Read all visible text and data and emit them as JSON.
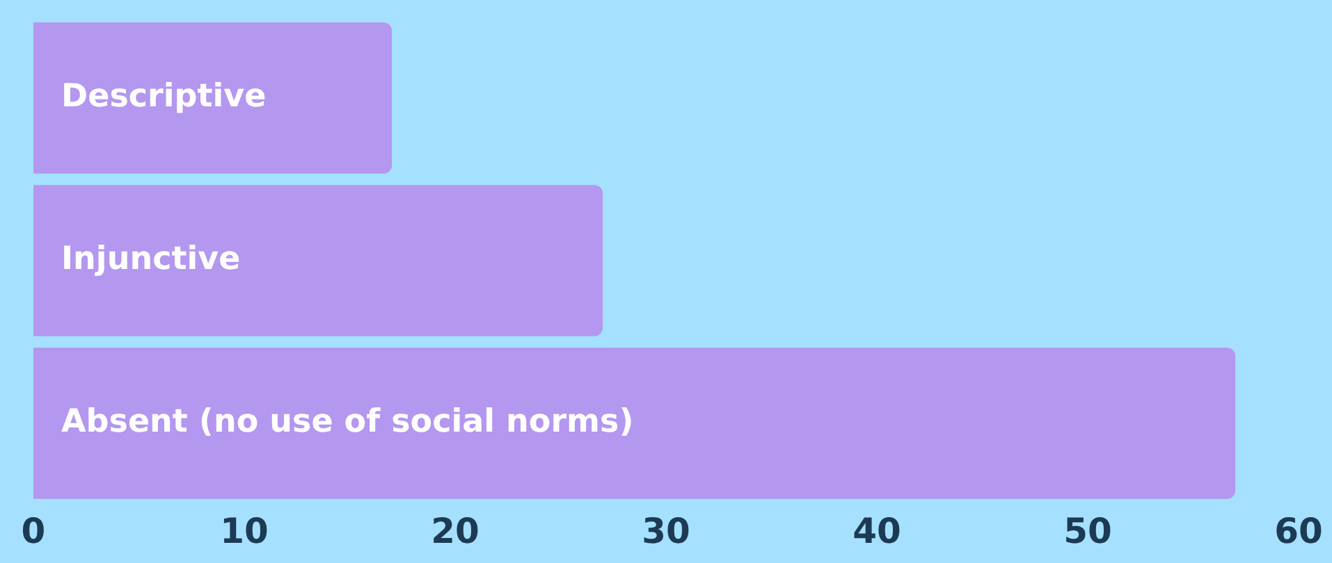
{
  "chart_data": {
    "type": "bar",
    "orientation": "horizontal",
    "categories": [
      "Descriptive",
      "Injunctive",
      "Absent (no use of social norms)"
    ],
    "values": [
      17,
      27,
      57
    ],
    "color": "#b497ef",
    "xlim": [
      0,
      60
    ],
    "xticks": [
      0,
      10,
      20,
      30,
      40,
      50,
      60
    ],
    "grid": false,
    "legend": false,
    "tick_labels": "x"
  }
}
